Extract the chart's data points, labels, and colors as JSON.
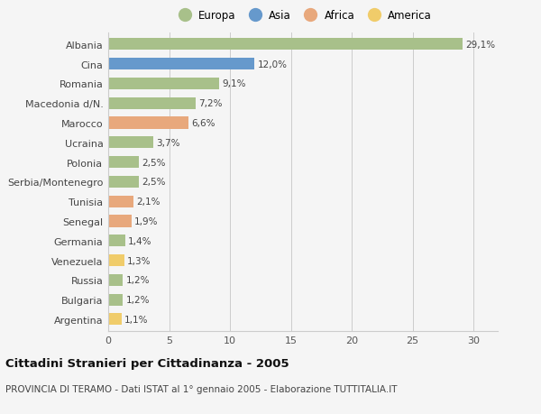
{
  "categories": [
    "Albania",
    "Cina",
    "Romania",
    "Macedonia d/N.",
    "Marocco",
    "Ucraina",
    "Polonia",
    "Serbia/Montenegro",
    "Tunisia",
    "Senegal",
    "Germania",
    "Venezuela",
    "Russia",
    "Bulgaria",
    "Argentina"
  ],
  "values": [
    29.1,
    12.0,
    9.1,
    7.2,
    6.6,
    3.7,
    2.5,
    2.5,
    2.1,
    1.9,
    1.4,
    1.3,
    1.2,
    1.2,
    1.1
  ],
  "labels": [
    "29,1%",
    "12,0%",
    "9,1%",
    "7,2%",
    "6,6%",
    "3,7%",
    "2,5%",
    "2,5%",
    "2,1%",
    "1,9%",
    "1,4%",
    "1,3%",
    "1,2%",
    "1,2%",
    "1,1%"
  ],
  "continents": [
    "Europa",
    "Asia",
    "Europa",
    "Europa",
    "Africa",
    "Europa",
    "Europa",
    "Europa",
    "Africa",
    "Africa",
    "Europa",
    "America",
    "Europa",
    "Europa",
    "America"
  ],
  "colors": {
    "Europa": "#a8c08a",
    "Asia": "#6699cc",
    "Africa": "#e8a87c",
    "America": "#f0cc6a"
  },
  "legend_order": [
    "Europa",
    "Asia",
    "Africa",
    "America"
  ],
  "xlim": [
    0,
    32
  ],
  "xticks": [
    0,
    5,
    10,
    15,
    20,
    25,
    30
  ],
  "title": "Cittadini Stranieri per Cittadinanza - 2005",
  "subtitle": "PROVINCIA DI TERAMO - Dati ISTAT al 1° gennaio 2005 - Elaborazione TUTTITALIA.IT",
  "bg_color": "#f5f5f5",
  "grid_color": "#cccccc",
  "bar_height": 0.6
}
